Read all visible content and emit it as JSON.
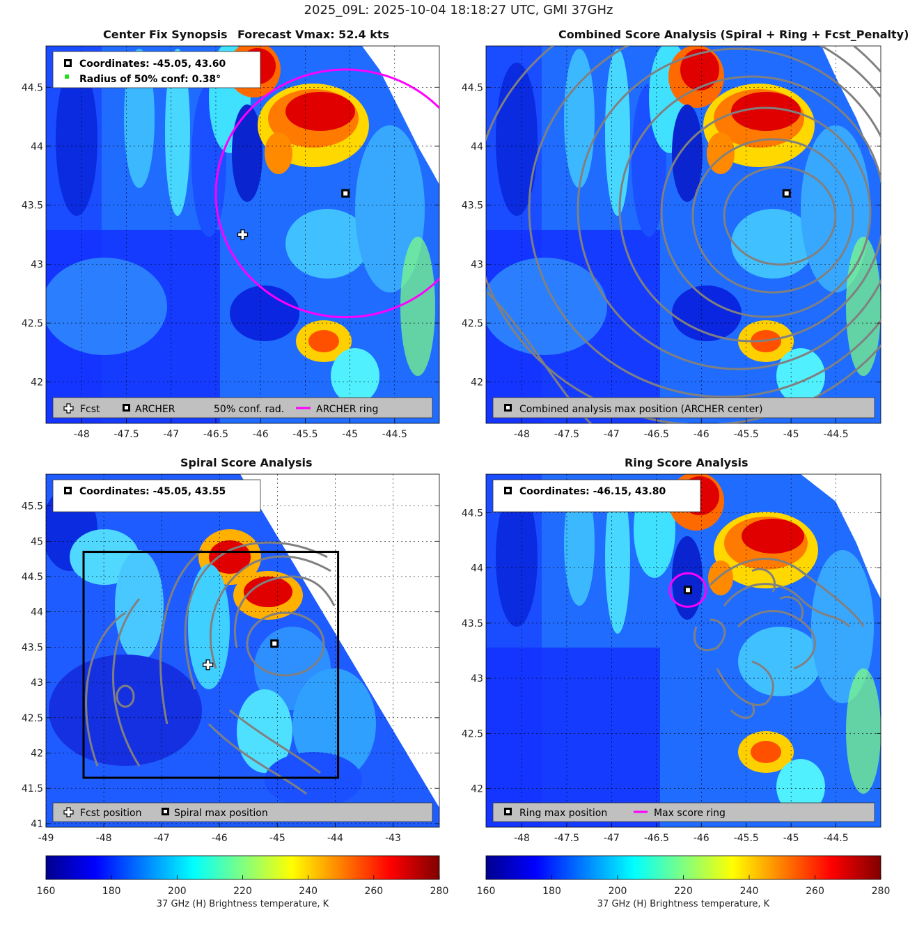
{
  "suptitle": "2025_09L: 2025-10-04 18:18:27 UTC, GMI 37GHz",
  "colormap": [
    "#00008f",
    "#0000ff",
    "#0080ff",
    "#00ffff",
    "#80ff80",
    "#ffff00",
    "#ff8000",
    "#ff0000",
    "#800000"
  ],
  "ring_color": "#ff00ff",
  "contour_color": "#808080",
  "panels": {
    "synopsis": {
      "title_left": "Center Fix Synopsis",
      "title_right": "Forecast Vmax: 52.4 kts",
      "info_lines": [
        "Coordinates: -45.05, 43.60",
        "Radius of 50% conf: 0.38°"
      ],
      "legend": [
        "Fcst",
        "ARCHER",
        "50% conf. rad.",
        "ARCHER ring"
      ]
    },
    "combined": {
      "title": "Combined Score Analysis (Spiral + Ring + Fcst_Penalty)",
      "legend": [
        "Combined analysis max position (ARCHER center)"
      ]
    },
    "spiral": {
      "title": "Spiral Score Analysis",
      "info_lines": [
        "Coordinates: -45.05, 43.55"
      ],
      "legend": [
        "Fcst position",
        "Spiral max position"
      ]
    },
    "ring": {
      "title": "Ring Score Analysis",
      "info_lines": [
        "Coordinates: -46.15, 43.80"
      ],
      "legend": [
        "Ring max position",
        "Max score ring"
      ]
    }
  },
  "colorbars": {
    "label": "37 GHz (H) Brightness temperature, K",
    "ticks": [
      "160",
      "180",
      "200",
      "220",
      "240",
      "260",
      "280"
    ]
  },
  "chart_data": [
    {
      "type": "heatmap",
      "panel": "Center Fix Synopsis",
      "x_ticks": [
        -48,
        -47.5,
        -47,
        -46.5,
        -46,
        -45.5,
        -45,
        -44.5
      ],
      "y_ticks": [
        42,
        42.5,
        43,
        43.5,
        44,
        44.5
      ],
      "xlim": [
        -48.4,
        -44.0
      ],
      "ylim": [
        41.65,
        44.85
      ],
      "colorbar_range": [
        160,
        280
      ],
      "archer_center": [
        -45.05,
        43.6
      ],
      "forecast_position": [
        -46.2,
        43.25
      ],
      "archer_ring": {
        "center": [
          -45.05,
          43.6
        ],
        "radius_deg_x": 1.45,
        "radius_deg_y": 1.05
      }
    },
    {
      "type": "heatmap",
      "panel": "Combined Score Analysis",
      "x_ticks": [
        -48,
        -47.5,
        -47,
        -46.5,
        -46,
        -45.5,
        -45,
        -44.5
      ],
      "y_ticks": [
        42,
        42.5,
        43,
        43.5,
        44,
        44.5
      ],
      "xlim": [
        -48.4,
        -44.0
      ],
      "ylim": [
        41.65,
        44.85
      ],
      "max_position": [
        -45.05,
        43.6
      ]
    },
    {
      "type": "heatmap",
      "panel": "Spiral Score Analysis",
      "x_ticks": [
        -49,
        -48,
        -47,
        -46,
        -45,
        -44,
        -43
      ],
      "y_ticks": [
        41,
        41.5,
        42,
        42.5,
        43,
        43.5,
        44,
        44.5,
        45,
        45.5
      ],
      "xlim": [
        -49,
        -42.2
      ],
      "ylim": [
        40.95,
        45.95
      ],
      "max_position": [
        -45.05,
        43.55
      ],
      "forecast_position": [
        -46.2,
        43.25
      ],
      "search_box": {
        "x": [
          -48.35,
          -43.95
        ],
        "y": [
          41.65,
          44.85
        ]
      }
    },
    {
      "type": "heatmap",
      "panel": "Ring Score Analysis",
      "x_ticks": [
        -48,
        -47.5,
        -47,
        -46.5,
        -46,
        -45.5,
        -45,
        -44.5
      ],
      "y_ticks": [
        42,
        42.5,
        43,
        43.5,
        44,
        44.5
      ],
      "xlim": [
        -48.4,
        -44.0
      ],
      "ylim": [
        41.65,
        44.85
      ],
      "max_position": [
        -46.15,
        43.8
      ]
    }
  ]
}
